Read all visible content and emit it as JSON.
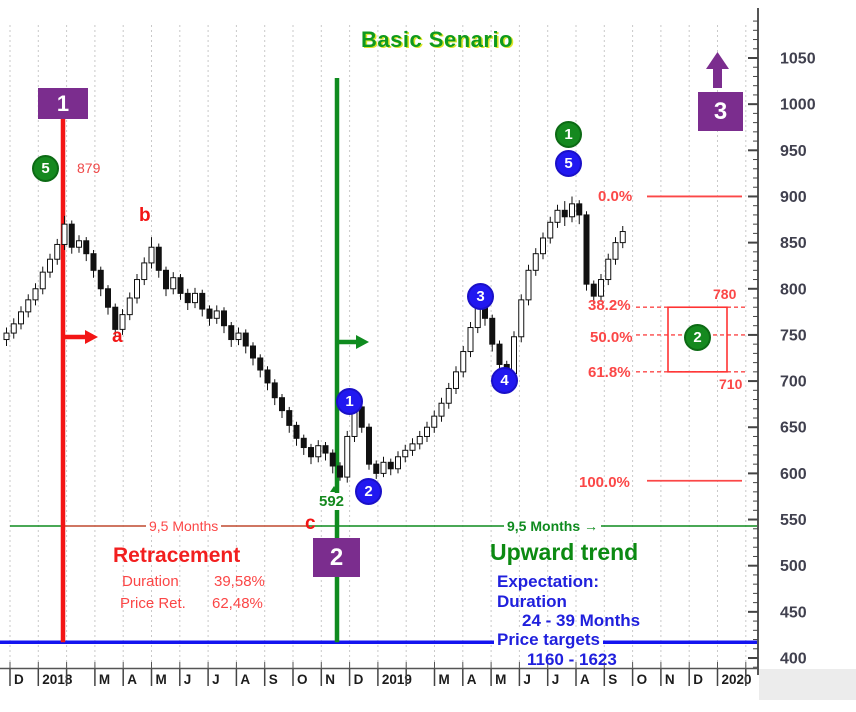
{
  "title": "Basic Senario",
  "colors": {
    "red": "#f31515",
    "green": "#0f8b1f",
    "blue_line": "#1414f0",
    "purple": "#7b2d8e",
    "fib_red": "#fb4747",
    "grid": "#c9c9c9",
    "axis": "#40404e",
    "candle_dark": "#111111"
  },
  "icons": {
    "arrow_right": "→",
    "up_arrow": "purple-up-arrow",
    "caret_up": "green-caret"
  },
  "annotations": {
    "boxes": {
      "b1": "1",
      "b2": "2",
      "b3": "3"
    },
    "circles": {
      "green5": "5",
      "green1": "1",
      "green2": "2",
      "blue1": "1",
      "blue2": "2",
      "blue3": "3",
      "blue4": "4",
      "blue5": "5"
    },
    "letters": {
      "a": "a",
      "b": "b",
      "c": "c"
    },
    "peak_price": "879",
    "trough_price": "592",
    "duration_left": "9,5 Months",
    "duration_right": "9,5 Months",
    "retracement": {
      "title": "Retracement",
      "duration_label": "Duration",
      "duration_value": "39,58%",
      "price_label": "Price Ret.",
      "price_value": "62,48%"
    },
    "upward_trend": {
      "title": "Upward trend",
      "expectation_label": "Expectation:",
      "duration_label": "Duration",
      "duration_value": "24 - 39 Months",
      "price_label": "Price targets",
      "price_value": "1160 - 1623"
    }
  },
  "chart_data": {
    "type": "candlestick",
    "title": "Basic Senario",
    "y_axis": {
      "min": 400,
      "max": 1050,
      "tick_step": 50,
      "minor_step": 10
    },
    "x_axis": {
      "month_slots": [
        "D",
        "2018",
        "",
        "M",
        "A",
        "M",
        "J",
        "J",
        "A",
        "S",
        "O",
        "N",
        "D",
        "2019",
        "",
        "M",
        "A",
        "M",
        "J",
        "J",
        "A",
        "S",
        "O",
        "N",
        "D",
        "2020",
        ""
      ]
    },
    "reference_lines": [
      {
        "name": "support",
        "color": "blue",
        "price": 417
      },
      {
        "name": "trend-base",
        "color": "green",
        "price": 543
      }
    ],
    "event_lines": [
      {
        "name": "wave1-marker",
        "color": "red"
      },
      {
        "name": "wave2-marker",
        "color": "green"
      }
    ],
    "fibonacci": {
      "levels": [
        {
          "label": "0.0%",
          "price": 900,
          "style": "solid"
        },
        {
          "label": "38.2%",
          "price": 780,
          "style": "dashed"
        },
        {
          "label": "50.0%",
          "price": 750,
          "style": "dashed"
        },
        {
          "label": "61.8%",
          "price": 710,
          "style": "dashed"
        },
        {
          "label": "100.0%",
          "price": 592,
          "style": "solid"
        }
      ],
      "box_top": "780",
      "box_bottom": "710"
    },
    "key_prices": {
      "peak": 879,
      "trough": 592
    },
    "candles": [
      [
        745,
        758,
        738,
        752
      ],
      [
        752,
        768,
        746,
        762
      ],
      [
        762,
        781,
        756,
        775
      ],
      [
        775,
        794,
        769,
        788
      ],
      [
        788,
        806,
        782,
        800
      ],
      [
        800,
        824,
        794,
        818
      ],
      [
        818,
        838,
        812,
        832
      ],
      [
        832,
        854,
        826,
        848
      ],
      [
        848,
        879,
        842,
        870
      ],
      [
        870,
        874,
        838,
        845
      ],
      [
        845,
        858,
        839,
        852
      ],
      [
        852,
        856,
        830,
        838
      ],
      [
        838,
        842,
        812,
        820
      ],
      [
        820,
        824,
        792,
        800
      ],
      [
        800,
        804,
        772,
        780
      ],
      [
        780,
        784,
        748,
        756
      ],
      [
        756,
        778,
        750,
        772
      ],
      [
        772,
        796,
        766,
        790
      ],
      [
        790,
        816,
        784,
        810
      ],
      [
        810,
        834,
        804,
        828
      ],
      [
        828,
        856,
        822,
        845
      ],
      [
        845,
        849,
        812,
        820
      ],
      [
        820,
        824,
        792,
        800
      ],
      [
        800,
        818,
        794,
        812
      ],
      [
        812,
        816,
        788,
        795
      ],
      [
        795,
        800,
        777,
        785
      ],
      [
        785,
        801,
        779,
        795
      ],
      [
        795,
        799,
        770,
        778
      ],
      [
        778,
        782,
        760,
        768
      ],
      [
        768,
        782,
        762,
        776
      ],
      [
        776,
        780,
        752,
        760
      ],
      [
        760,
        764,
        737,
        745
      ],
      [
        745,
        758,
        739,
        752
      ],
      [
        752,
        756,
        730,
        738
      ],
      [
        738,
        742,
        717,
        725
      ],
      [
        725,
        729,
        704,
        712
      ],
      [
        712,
        716,
        690,
        698
      ],
      [
        698,
        702,
        674,
        682
      ],
      [
        682,
        686,
        660,
        668
      ],
      [
        668,
        672,
        644,
        652
      ],
      [
        652,
        656,
        630,
        638
      ],
      [
        638,
        642,
        620,
        628
      ],
      [
        628,
        632,
        610,
        618
      ],
      [
        618,
        636,
        612,
        630
      ],
      [
        630,
        634,
        614,
        622
      ],
      [
        622,
        626,
        600,
        608
      ],
      [
        608,
        612,
        592,
        596
      ],
      [
        596,
        646,
        590,
        640
      ],
      [
        640,
        680,
        634,
        672
      ],
      [
        672,
        676,
        644,
        650
      ],
      [
        650,
        654,
        604,
        610
      ],
      [
        610,
        614,
        594,
        600
      ],
      [
        600,
        618,
        596,
        612
      ],
      [
        612,
        616,
        598,
        605
      ],
      [
        605,
        624,
        600,
        618
      ],
      [
        618,
        631,
        612,
        625
      ],
      [
        625,
        638,
        619,
        632
      ],
      [
        632,
        646,
        626,
        640
      ],
      [
        640,
        656,
        634,
        650
      ],
      [
        650,
        668,
        644,
        662
      ],
      [
        662,
        682,
        656,
        676
      ],
      [
        676,
        698,
        670,
        692
      ],
      [
        692,
        716,
        686,
        710
      ],
      [
        710,
        738,
        704,
        732
      ],
      [
        732,
        764,
        726,
        758
      ],
      [
        758,
        800,
        752,
        785
      ],
      [
        785,
        789,
        760,
        768
      ],
      [
        768,
        772,
        732,
        740
      ],
      [
        740,
        744,
        712,
        718
      ],
      [
        718,
        722,
        703,
        708
      ],
      [
        708,
        754,
        704,
        748
      ],
      [
        748,
        794,
        742,
        788
      ],
      [
        788,
        826,
        782,
        820
      ],
      [
        820,
        844,
        814,
        838
      ],
      [
        838,
        861,
        832,
        855
      ],
      [
        855,
        878,
        849,
        872
      ],
      [
        872,
        891,
        866,
        885
      ],
      [
        885,
        895,
        868,
        878
      ],
      [
        878,
        900,
        872,
        892
      ],
      [
        892,
        896,
        870,
        880
      ],
      [
        880,
        884,
        798,
        805
      ],
      [
        805,
        809,
        784,
        792
      ],
      [
        792,
        816,
        786,
        810
      ],
      [
        810,
        838,
        804,
        832
      ],
      [
        832,
        856,
        826,
        850
      ],
      [
        850,
        868,
        844,
        862
      ]
    ]
  }
}
